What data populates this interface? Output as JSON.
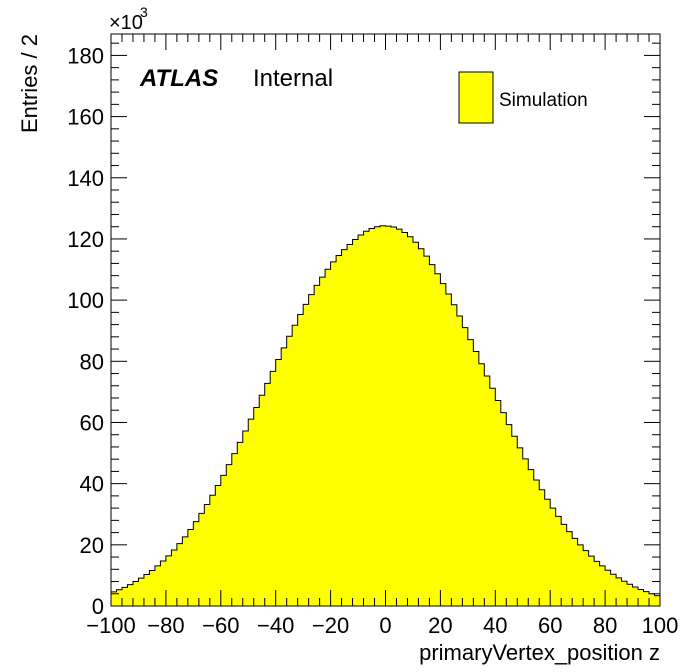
{
  "chart_data": {
    "type": "bar",
    "title": "",
    "xlabel": "primaryVertex_position z",
    "ylabel": "Entries / 2",
    "xlim": [
      -100,
      100
    ],
    "ylim": [
      0,
      187
    ],
    "bin_width": 2,
    "x_ticks": [
      "−100",
      "−80",
      "−60",
      "−40",
      "−20",
      "0",
      "20",
      "40",
      "60",
      "80",
      "100"
    ],
    "y_ticks": [
      "0",
      "20",
      "40",
      "60",
      "80",
      "100",
      "120",
      "140",
      "160",
      "180"
    ],
    "y_multiplier": "×10",
    "y_multiplier_exponent": "3",
    "series": [
      {
        "name": "Simulation",
        "fill_color": "#ffff00",
        "line_color": "#000000",
        "bin_low_edges": [
          -100,
          -98,
          -96,
          -94,
          -92,
          -90,
          -88,
          -86,
          -84,
          -82,
          -80,
          -78,
          -76,
          -74,
          -72,
          -70,
          -68,
          -66,
          -64,
          -62,
          -60,
          -58,
          -56,
          -54,
          -52,
          -50,
          -48,
          -46,
          -44,
          -42,
          -40,
          -38,
          -36,
          -34,
          -32,
          -30,
          -28,
          -26,
          -24,
          -22,
          -20,
          -18,
          -16,
          -14,
          -12,
          -10,
          -8,
          -6,
          -4,
          -2,
          0,
          2,
          4,
          6,
          8,
          10,
          12,
          14,
          16,
          18,
          20,
          22,
          24,
          26,
          28,
          30,
          32,
          34,
          36,
          38,
          40,
          42,
          44,
          46,
          48,
          50,
          52,
          54,
          56,
          58,
          60,
          62,
          64,
          66,
          68,
          70,
          72,
          74,
          76,
          78,
          80,
          82,
          84,
          86,
          88,
          90,
          92,
          94,
          96,
          98
        ],
        "values": [
          4.6,
          5.3,
          6.1,
          7.0,
          8.0,
          9.1,
          10.3,
          11.6,
          13.1,
          14.7,
          16.4,
          18.3,
          20.4,
          22.6,
          25.0,
          27.6,
          30.3,
          33.2,
          36.2,
          39.4,
          42.7,
          46.2,
          49.8,
          53.5,
          57.2,
          61.1,
          64.9,
          68.9,
          72.8,
          76.7,
          80.6,
          84.4,
          88.2,
          91.8,
          95.3,
          98.6,
          101.8,
          104.8,
          107.5,
          110.1,
          112.5,
          114.6,
          116.5,
          118.2,
          119.8,
          121.3,
          122.5,
          123.4,
          124.0,
          124.3,
          124.2,
          123.9,
          123.2,
          122.1,
          120.7,
          118.9,
          116.8,
          114.4,
          111.6,
          108.6,
          105.4,
          102.0,
          98.5,
          94.8,
          91.0,
          87.1,
          83.2,
          79.2,
          75.2,
          71.2,
          67.2,
          63.2,
          59.3,
          55.5,
          51.7,
          48.1,
          44.6,
          41.2,
          38.0,
          34.9,
          32.0,
          29.3,
          26.7,
          24.3,
          22.1,
          20.0,
          18.1,
          16.3,
          14.6,
          13.1,
          11.7,
          10.4,
          9.2,
          8.1,
          7.1,
          6.2,
          5.4,
          4.7,
          4.0,
          3.4
        ]
      }
    ],
    "legend_position": "top-right"
  },
  "labels": {
    "atlas": "ATLAS",
    "internal": "Internal",
    "legend_entry": "Simulation"
  }
}
